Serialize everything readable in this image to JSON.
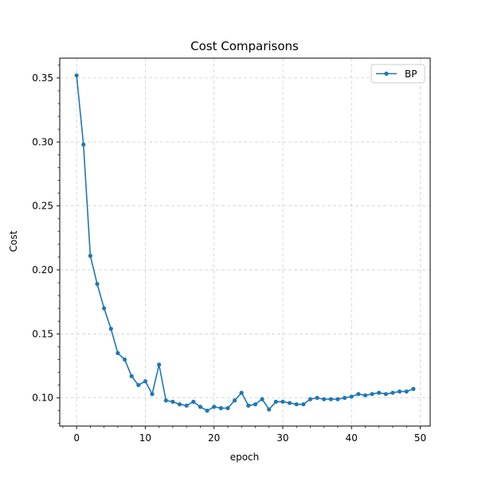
{
  "chart_data": {
    "type": "line",
    "title": "Cost Comparisons",
    "xlabel": "epoch",
    "ylabel": "Cost",
    "xlim": [
      -2.45,
      51.45
    ],
    "ylim": [
      0.078,
      0.3655
    ],
    "xticks": [
      0,
      10,
      20,
      30,
      40,
      50
    ],
    "xtick_labels": [
      "0",
      "10",
      "20",
      "30",
      "40",
      "50"
    ],
    "yticks": [
      0.1,
      0.15,
      0.2,
      0.25,
      0.3,
      0.35
    ],
    "ytick_labels": [
      "0.10",
      "0.15",
      "0.20",
      "0.25",
      "0.30",
      "0.35"
    ],
    "grid": true,
    "legend_position": "top-right",
    "series": [
      {
        "name": "BP",
        "color": "#1f77b4",
        "marker": "circle",
        "x": [
          0,
          1,
          2,
          3,
          4,
          5,
          6,
          7,
          8,
          9,
          10,
          11,
          12,
          13,
          14,
          15,
          16,
          17,
          18,
          19,
          20,
          21,
          22,
          23,
          24,
          25,
          26,
          27,
          28,
          29,
          30,
          31,
          32,
          33,
          34,
          35,
          36,
          37,
          38,
          39,
          40,
          41,
          42,
          43,
          44,
          45,
          46,
          47,
          48,
          49
        ],
        "y": [
          0.352,
          0.298,
          0.211,
          0.189,
          0.17,
          0.154,
          0.135,
          0.13,
          0.117,
          0.11,
          0.113,
          0.103,
          0.126,
          0.098,
          0.097,
          0.095,
          0.094,
          0.097,
          0.093,
          0.09,
          0.093,
          0.092,
          0.092,
          0.098,
          0.104,
          0.094,
          0.095,
          0.099,
          0.091,
          0.097,
          0.097,
          0.096,
          0.095,
          0.095,
          0.099,
          0.1,
          0.099,
          0.099,
          0.099,
          0.1,
          0.101,
          0.103,
          0.102,
          0.103,
          0.104,
          0.103,
          0.104,
          0.105,
          0.105,
          0.107
        ]
      }
    ]
  }
}
